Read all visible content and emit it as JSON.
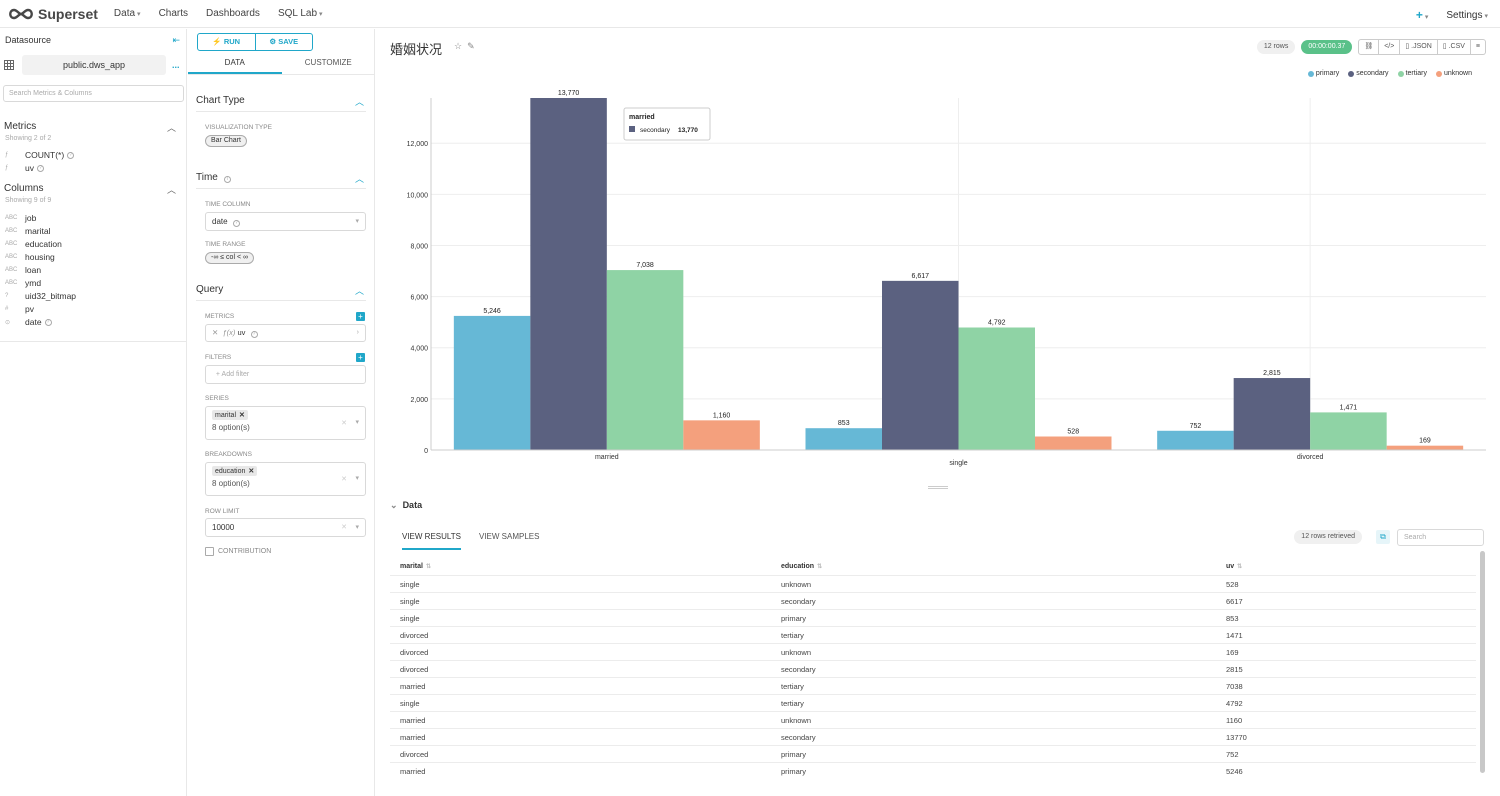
{
  "nav": {
    "brand": "Superset",
    "items": [
      "Data",
      "Charts",
      "Dashboards",
      "SQL Lab"
    ],
    "settings": "Settings",
    "plus": "+"
  },
  "datasource": {
    "title": "Datasource",
    "name": "public.dws_app",
    "more": "...",
    "search_placeholder": "Search Metrics & Columns",
    "metrics_title": "Metrics",
    "metrics_sub": "Showing 2 of 2",
    "metrics": [
      {
        "type": "ƒ",
        "name": "COUNT(*)"
      },
      {
        "type": "ƒ",
        "name": "uv"
      }
    ],
    "columns_title": "Columns",
    "columns_sub": "Showing 9 of 9",
    "columns": [
      {
        "type": "ABC",
        "name": "job"
      },
      {
        "type": "ABC",
        "name": "marital"
      },
      {
        "type": "ABC",
        "name": "education"
      },
      {
        "type": "ABC",
        "name": "housing"
      },
      {
        "type": "ABC",
        "name": "loan"
      },
      {
        "type": "ABC",
        "name": "ymd"
      },
      {
        "type": "?",
        "name": "uid32_bitmap"
      },
      {
        "type": "#",
        "name": "pv"
      },
      {
        "type": "⊙",
        "name": "date"
      }
    ]
  },
  "controls": {
    "run": "RUN",
    "save": "SAVE",
    "tab_data": "DATA",
    "tab_customize": "CUSTOMIZE",
    "chart_type_title": "Chart Type",
    "viz_type_label": "VISUALIZATION TYPE",
    "viz_type": "Bar Chart",
    "time_title": "Time",
    "time_column_label": "TIME COLUMN",
    "time_column": "date",
    "time_range_label": "TIME RANGE",
    "time_range": "-∞ ≤ col < ∞",
    "query_title": "Query",
    "metrics_label": "METRICS",
    "metric_value": "uv",
    "filters_label": "FILTERS",
    "add_filter": "Add filter",
    "series_label": "SERIES",
    "series_chip": "marital",
    "series_options": "8 option(s)",
    "breakdowns_label": "BREAKDOWNS",
    "breakdowns_chip": "education",
    "breakdowns_options": "8 option(s)",
    "row_limit_label": "ROW LIMIT",
    "row_limit": "10000",
    "contribution_label": "CONTRIBUTION"
  },
  "chart_header": {
    "title": "婚姻状况",
    "rows_badge": "12 rows",
    "time_badge": "00:00:00.37",
    "btn_link": "🔗",
    "btn_code": "</>",
    "btn_json": ".JSON",
    "btn_csv": ".CSV",
    "btn_menu": "≡"
  },
  "chart_data": {
    "type": "bar",
    "categories": [
      "married",
      "single",
      "divorced"
    ],
    "series": [
      {
        "name": "primary",
        "color": "#66b8d6",
        "values": [
          5246,
          853,
          752
        ]
      },
      {
        "name": "secondary",
        "color": "#5b6180",
        "values": [
          13770,
          6617,
          2815
        ]
      },
      {
        "name": "tertiary",
        "color": "#8fd3a5",
        "values": [
          7038,
          4792,
          1471
        ]
      },
      {
        "name": "unknown",
        "color": "#f4a07d",
        "values": [
          1160,
          528,
          169
        ]
      }
    ],
    "yticks": [
      0,
      2000,
      4000,
      6000,
      8000,
      10000,
      12000
    ],
    "ytick_labels": [
      "0",
      "2,000",
      "4,000",
      "6,000",
      "8,000",
      "10,000",
      "12,000"
    ],
    "ylim": [
      0,
      13770
    ],
    "grid": true,
    "legend": "top-right",
    "tooltip": {
      "title": "married",
      "series": "secondary",
      "value": "13,770"
    }
  },
  "data_panel": {
    "title": "Data",
    "tab_results": "VIEW RESULTS",
    "tab_samples": "VIEW SAMPLES",
    "retrieved": "12 rows retrieved",
    "search_placeholder": "Search",
    "headers": [
      "marital",
      "education",
      "uv"
    ],
    "rows": [
      [
        "single",
        "unknown",
        "528"
      ],
      [
        "single",
        "secondary",
        "6617"
      ],
      [
        "single",
        "primary",
        "853"
      ],
      [
        "divorced",
        "tertiary",
        "1471"
      ],
      [
        "divorced",
        "unknown",
        "169"
      ],
      [
        "divorced",
        "secondary",
        "2815"
      ],
      [
        "married",
        "tertiary",
        "7038"
      ],
      [
        "single",
        "tertiary",
        "4792"
      ],
      [
        "married",
        "unknown",
        "1160"
      ],
      [
        "married",
        "secondary",
        "13770"
      ],
      [
        "divorced",
        "primary",
        "752"
      ],
      [
        "married",
        "primary",
        "5246"
      ]
    ]
  }
}
